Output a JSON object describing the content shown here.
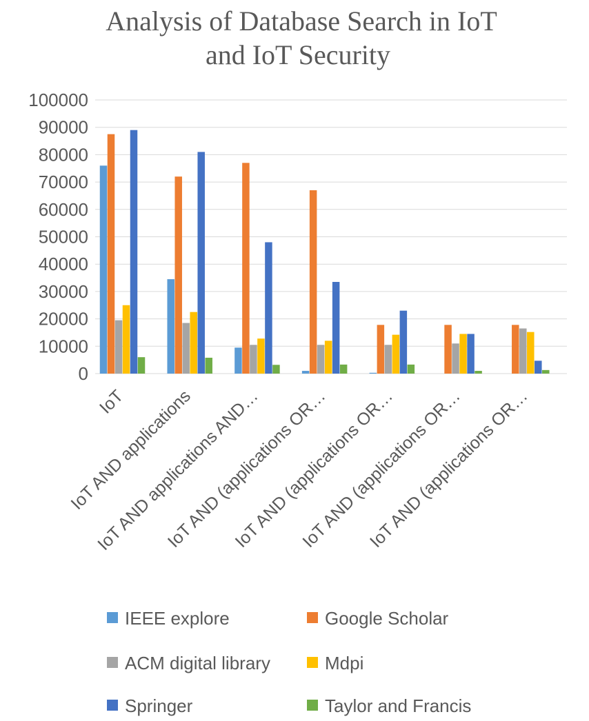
{
  "chart_data": {
    "type": "bar",
    "title_lines": [
      "Analysis of Database Search in IoT",
      "and IoT Security"
    ],
    "xlabel": "",
    "ylabel": "",
    "ylim": [
      0,
      100000
    ],
    "yticks": [
      0,
      10000,
      20000,
      30000,
      40000,
      50000,
      60000,
      70000,
      80000,
      90000,
      100000
    ],
    "grid": true,
    "legend_position": "bottom",
    "categories": [
      "IoT",
      "IoT AND  applications",
      "IoT AND applications AND…",
      "IoT AND (applications OR…",
      "IoT AND (applications OR…",
      "IoT AND (applications OR…",
      "IoT AND (applications OR…"
    ],
    "series": [
      {
        "name": "IEEE explore",
        "color": "#5b9bd5",
        "values": [
          76000,
          34500,
          9500,
          1000,
          300,
          0,
          0
        ]
      },
      {
        "name": "Google Scholar",
        "color": "#ed7d31",
        "values": [
          87500,
          72000,
          77000,
          67000,
          17800,
          17800,
          17800
        ]
      },
      {
        "name": "ACM digital library",
        "color": "#a5a5a5",
        "values": [
          19500,
          18500,
          10500,
          10500,
          10500,
          11000,
          16500
        ]
      },
      {
        "name": "Mdpi",
        "color": "#ffc000",
        "values": [
          25000,
          22500,
          12800,
          12000,
          14200,
          14500,
          15200
        ]
      },
      {
        "name": "Springer",
        "color": "#4472c4",
        "values": [
          89000,
          81000,
          48000,
          33500,
          23000,
          14500,
          4700
        ]
      },
      {
        "name": "Taylor and Francis",
        "color": "#70ad47",
        "values": [
          6000,
          5800,
          3200,
          3300,
          3300,
          1000,
          1300
        ]
      }
    ]
  }
}
